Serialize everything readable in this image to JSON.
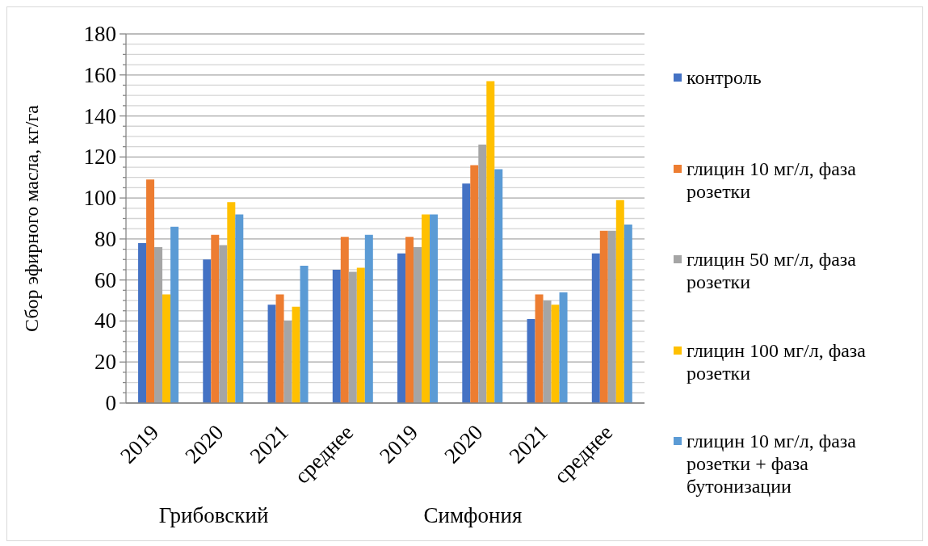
{
  "chart_data": {
    "type": "bar",
    "ylabel": "Сбор эфирного масла, кг/га",
    "categories": [
      "2019",
      "2020",
      "2021",
      "среднее",
      "2019",
      "2020",
      "2021",
      "среднее"
    ],
    "annotations": [
      "Грибовский",
      "Симфония"
    ],
    "series": [
      {
        "name": "контроль",
        "color": "#4472c4",
        "values": [
          78,
          70,
          48,
          65,
          73,
          107,
          41,
          73
        ]
      },
      {
        "name": "глицин 10 мг/л, фаза розетки",
        "color": "#ed7d31",
        "values": [
          109,
          82,
          53,
          81,
          81,
          116,
          53,
          84
        ]
      },
      {
        "name": "глицин 50 мг/л, фаза розетки",
        "color": "#a5a5a5",
        "values": [
          76,
          77,
          40,
          64,
          76,
          126,
          50,
          84
        ]
      },
      {
        "name": "глицин 100 мг/л, фаза розетки",
        "color": "#ffc000",
        "values": [
          53,
          98,
          47,
          66,
          92,
          157,
          48,
          99
        ]
      },
      {
        "name": "глицин 10 мг/л, фаза розетки + фаза бутонизации",
        "color": "#5b9bd5",
        "values": [
          86,
          92,
          67,
          82,
          92,
          114,
          54,
          87
        ]
      }
    ],
    "ylim": [
      0,
      180
    ],
    "yticks": [
      0,
      {
        "value": 5,
        "label": null
      },
      {
        "value": 10,
        "label": null
      },
      {
        "value": 15,
        "label": null
      },
      20,
      {
        "value": 25,
        "label": null
      },
      {
        "value": 30,
        "label": null
      },
      {
        "value": 35,
        "label": null
      },
      40,
      {
        "value": 45,
        "label": null
      },
      {
        "value": 50,
        "label": null
      },
      {
        "value": 55,
        "label": null
      },
      60,
      {
        "value": 65,
        "label": null
      },
      {
        "value": 70,
        "label": null
      },
      {
        "value": 75,
        "label": null
      },
      80,
      {
        "value": 85,
        "label": null
      },
      {
        "value": 90,
        "label": null
      },
      {
        "value": 95,
        "label": null
      },
      100,
      {
        "value": 105,
        "label": null
      },
      {
        "value": 110,
        "label": null
      },
      {
        "value": 115,
        "label": null
      },
      120,
      {
        "value": 125,
        "label": null
      },
      {
        "value": 130,
        "label": null
      },
      {
        "value": 135,
        "label": null
      },
      140,
      {
        "value": 145,
        "label": null
      },
      {
        "value": 150,
        "label": null
      },
      {
        "value": 155,
        "label": null
      },
      160,
      {
        "value": 165,
        "label": null
      },
      {
        "value": 170,
        "label": null
      },
      {
        "value": 175,
        "label": null
      },
      180
    ],
    "grid": "y",
    "legend": "right"
  }
}
